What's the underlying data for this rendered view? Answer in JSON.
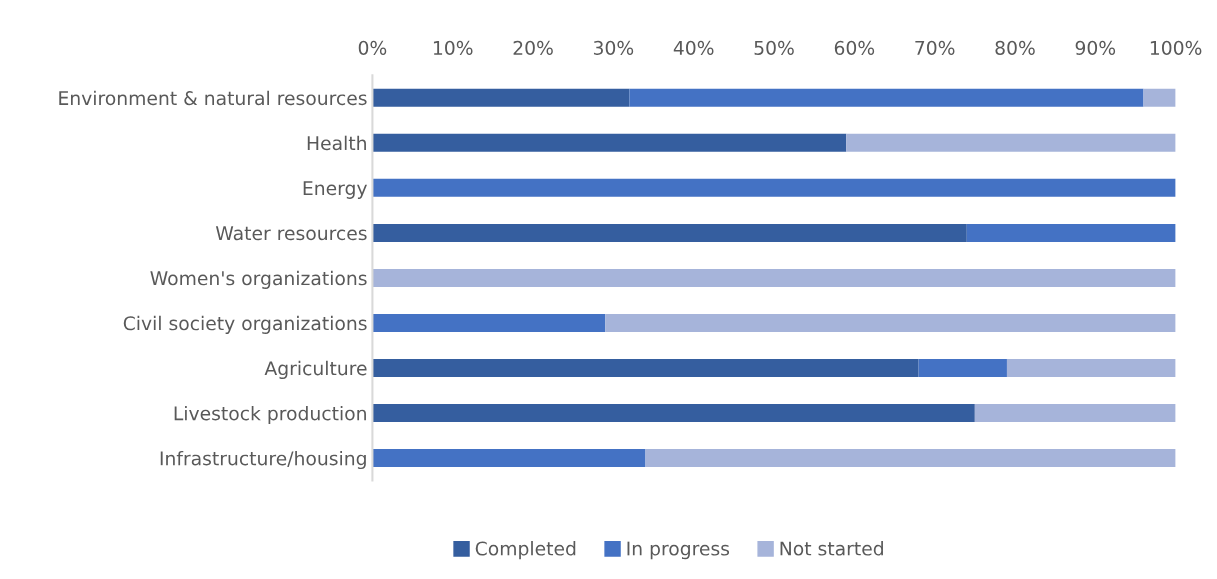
{
  "chart_data": {
    "type": "bar",
    "orientation": "horizontal",
    "stacked": true,
    "categories": [
      "Environment & natural resources",
      "Health",
      "Energy",
      "Water resources",
      "Women's organizations",
      "Civil society organizations",
      "Agriculture",
      "Livestock production",
      "Infrastructure/housing"
    ],
    "series": [
      {
        "name": "Completed",
        "color": "#355e9f",
        "values": [
          32,
          59,
          0,
          74,
          0,
          0,
          68,
          75,
          0
        ]
      },
      {
        "name": "In progress",
        "color": "#4472c4",
        "values": [
          64,
          0,
          100,
          26,
          0,
          29,
          11,
          0,
          34
        ]
      },
      {
        "name": "Not started",
        "color": "#a6b4da",
        "values": [
          4,
          41,
          0,
          0,
          100,
          71,
          21,
          25,
          66
        ]
      }
    ],
    "xlim": [
      0,
      100
    ],
    "xticks": [
      {
        "value": 0,
        "label": "0%"
      },
      {
        "value": 10,
        "label": "10%"
      },
      {
        "value": 20,
        "label": "20%"
      },
      {
        "value": 30,
        "label": "30%"
      },
      {
        "value": 40,
        "label": "40%"
      },
      {
        "value": 50,
        "label": "50%"
      },
      {
        "value": 60,
        "label": "60%"
      },
      {
        "value": 70,
        "label": "70%"
      },
      {
        "value": 80,
        "label": "80%"
      },
      {
        "value": 90,
        "label": "90%"
      },
      {
        "value": 100,
        "label": "100%"
      }
    ],
    "grid": false,
    "legend": "bottom"
  }
}
